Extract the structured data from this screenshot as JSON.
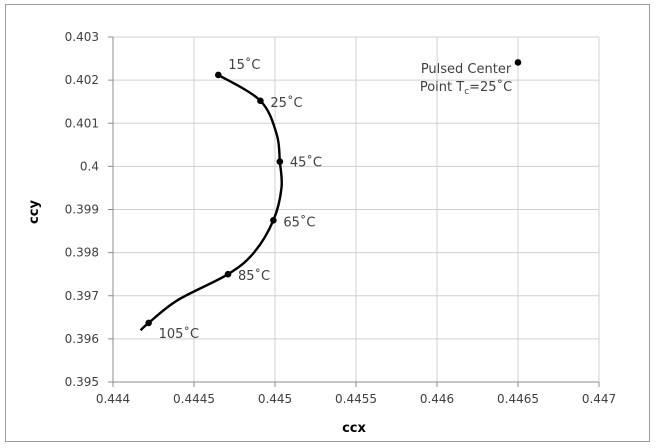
{
  "chart_data": {
    "type": "scatter",
    "xlabel": "ccx",
    "ylabel": "ccy",
    "xlim": [
      0.444,
      0.447
    ],
    "ylim": [
      0.395,
      0.403
    ],
    "x_ticks": [
      "0.444",
      "0.4445",
      "0.445",
      "0.4455",
      "0.446",
      "0.4465",
      "0.447"
    ],
    "y_ticks": [
      "0.395",
      "0.396",
      "0.397",
      "0.398",
      "0.399",
      "0.4",
      "0.401",
      "0.402",
      "0.403"
    ],
    "grid": true,
    "series": [
      {
        "points": [
          {
            "x": 0.44465,
            "y": 0.40212,
            "label": "15˚C"
          },
          {
            "x": 0.44491,
            "y": 0.40152,
            "label": "25˚C"
          },
          {
            "x": 0.44503,
            "y": 0.40011,
            "label": "45˚C"
          },
          {
            "x": 0.44499,
            "y": 0.39875,
            "label": "65˚C"
          },
          {
            "x": 0.44471,
            "y": 0.3975,
            "label": "85˚C"
          },
          {
            "x": 0.44422,
            "y": 0.39637,
            "label": "105˚C"
          }
        ],
        "curve": [
          [
            0.44465,
            0.40212
          ],
          [
            0.44491,
            0.40152
          ],
          [
            0.44501,
            0.40075
          ],
          [
            0.44503,
            0.40011
          ],
          [
            0.44504,
            0.3995
          ],
          [
            0.44499,
            0.39875
          ],
          [
            0.44487,
            0.398
          ],
          [
            0.44471,
            0.3975
          ],
          [
            0.4444,
            0.3969
          ],
          [
            0.44422,
            0.39637
          ],
          [
            0.44417,
            0.3962
          ]
        ]
      },
      {
        "points": [
          {
            "x": 0.4465,
            "y": 0.40241
          }
        ]
      }
    ],
    "annotation": {
      "line1": "Pulsed Center",
      "line2_prefix": "Point T",
      "line2_sub": "c",
      "line2_suffix": "=25˚C"
    }
  }
}
